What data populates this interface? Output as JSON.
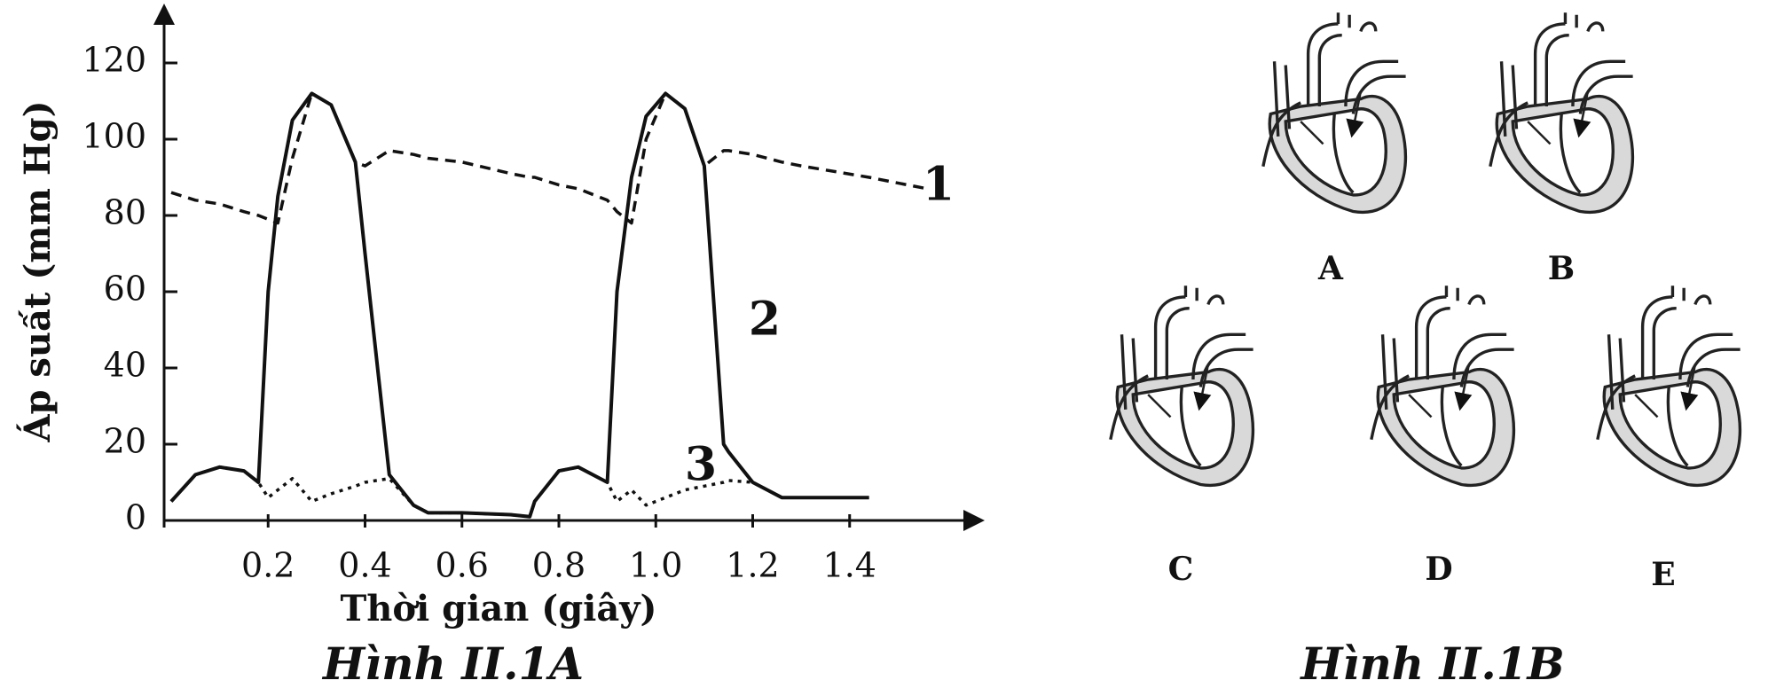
{
  "chart_data": {
    "type": "line",
    "caption": "Hình II.1A",
    "x_label": "Thời gian (giây)",
    "y_label": "Áp suất (mm Hg)",
    "x": [
      0,
      0.05,
      0.1,
      0.15,
      0.18,
      0.2,
      0.22,
      0.25,
      0.29,
      0.33,
      0.38,
      0.4,
      0.45,
      0.5,
      0.53,
      0.6,
      0.7,
      0.74,
      0.75,
      0.8,
      0.84,
      0.9,
      0.92,
      0.95,
      0.98,
      1.02,
      1.06,
      1.1,
      1.14,
      1.15,
      1.2,
      1.26,
      1.3,
      1.44,
      1.56
    ],
    "series": [
      {
        "name": "1",
        "color": "#111111",
        "dash": "dashed",
        "values": [
          86,
          84,
          83,
          81,
          80,
          79,
          78,
          95,
          112,
          109,
          94,
          93,
          97,
          96,
          95,
          94,
          91,
          90,
          90,
          88,
          87,
          84,
          81,
          78,
          100,
          112,
          108,
          93,
          97,
          97,
          96,
          94,
          93,
          90,
          87
        ]
      },
      {
        "name": "2",
        "color": "#111111",
        "dash": "solid",
        "values": [
          5,
          12,
          14,
          13,
          10,
          60,
          85,
          105,
          112,
          109,
          94,
          70,
          12,
          4,
          2,
          2,
          1.5,
          1,
          5,
          13,
          14,
          10,
          60,
          90,
          106,
          112,
          108,
          93,
          20,
          18,
          10,
          6,
          6,
          6,
          null
        ]
      },
      {
        "name": "3",
        "color": "#111111",
        "dash": "dotted",
        "values": [
          5,
          12,
          14,
          13,
          10,
          6,
          8,
          11,
          5,
          7,
          9,
          10,
          11,
          4,
          2,
          2,
          1.5,
          1,
          5,
          13,
          14,
          10,
          5,
          8,
          4,
          6,
          8,
          9,
          10,
          10.5,
          10,
          6,
          6,
          6,
          null
        ]
      }
    ],
    "xlim": [
      0,
      1.6
    ],
    "ylim": [
      0,
      130
    ],
    "xticks": [
      0.2,
      0.4,
      0.6,
      0.8,
      {
        "value": 1,
        "label": "1.0"
      },
      1.2,
      1.4
    ],
    "yticks": [
      0,
      20,
      40,
      60,
      80,
      100,
      120
    ]
  },
  "diagram": {
    "caption": "Hình II.1B",
    "labels": [
      "A",
      "B",
      "C",
      "D",
      "E"
    ]
  }
}
